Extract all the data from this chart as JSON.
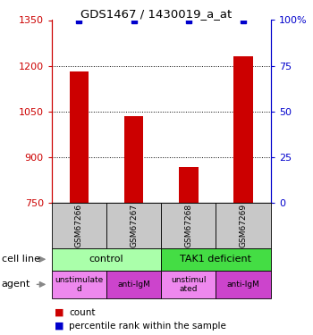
{
  "title": "GDS1467 / 1430019_a_at",
  "samples": [
    "GSM67266",
    "GSM67267",
    "GSM67268",
    "GSM67269"
  ],
  "counts": [
    1182,
    1035,
    868,
    1232
  ],
  "percentile_ranks": [
    100,
    100,
    100,
    100
  ],
  "bar_color": "#cc0000",
  "dot_color": "#0000cc",
  "ylim_left": [
    750,
    1350
  ],
  "ylim_right": [
    0,
    100
  ],
  "yticks_left": [
    750,
    900,
    1050,
    1200,
    1350
  ],
  "ytick_labels_left": [
    "750",
    "900",
    "1050",
    "1200",
    "1350"
  ],
  "yticks_right": [
    0,
    25,
    50,
    75,
    100
  ],
  "ytick_labels_right": [
    "0",
    "25",
    "50",
    "75",
    "100%"
  ],
  "cell_line_groups": [
    {
      "label": "control",
      "samples": [
        0,
        1
      ],
      "color": "#aaffaa"
    },
    {
      "label": "TAK1 deficient",
      "samples": [
        2,
        3
      ],
      "color": "#44dd44"
    }
  ],
  "agent_groups": [
    {
      "label": "unstimulate\nd",
      "sample": 0,
      "color": "#ee88ee"
    },
    {
      "label": "anti-IgM",
      "sample": 1,
      "color": "#cc44cc"
    },
    {
      "label": "unstimul\nated",
      "sample": 2,
      "color": "#ee88ee"
    },
    {
      "label": "anti-IgM",
      "sample": 3,
      "color": "#cc44cc"
    }
  ],
  "sample_box_color": "#c8c8c8",
  "left_axis_color": "#cc0000",
  "right_axis_color": "#0000cc",
  "bar_width": 0.35
}
